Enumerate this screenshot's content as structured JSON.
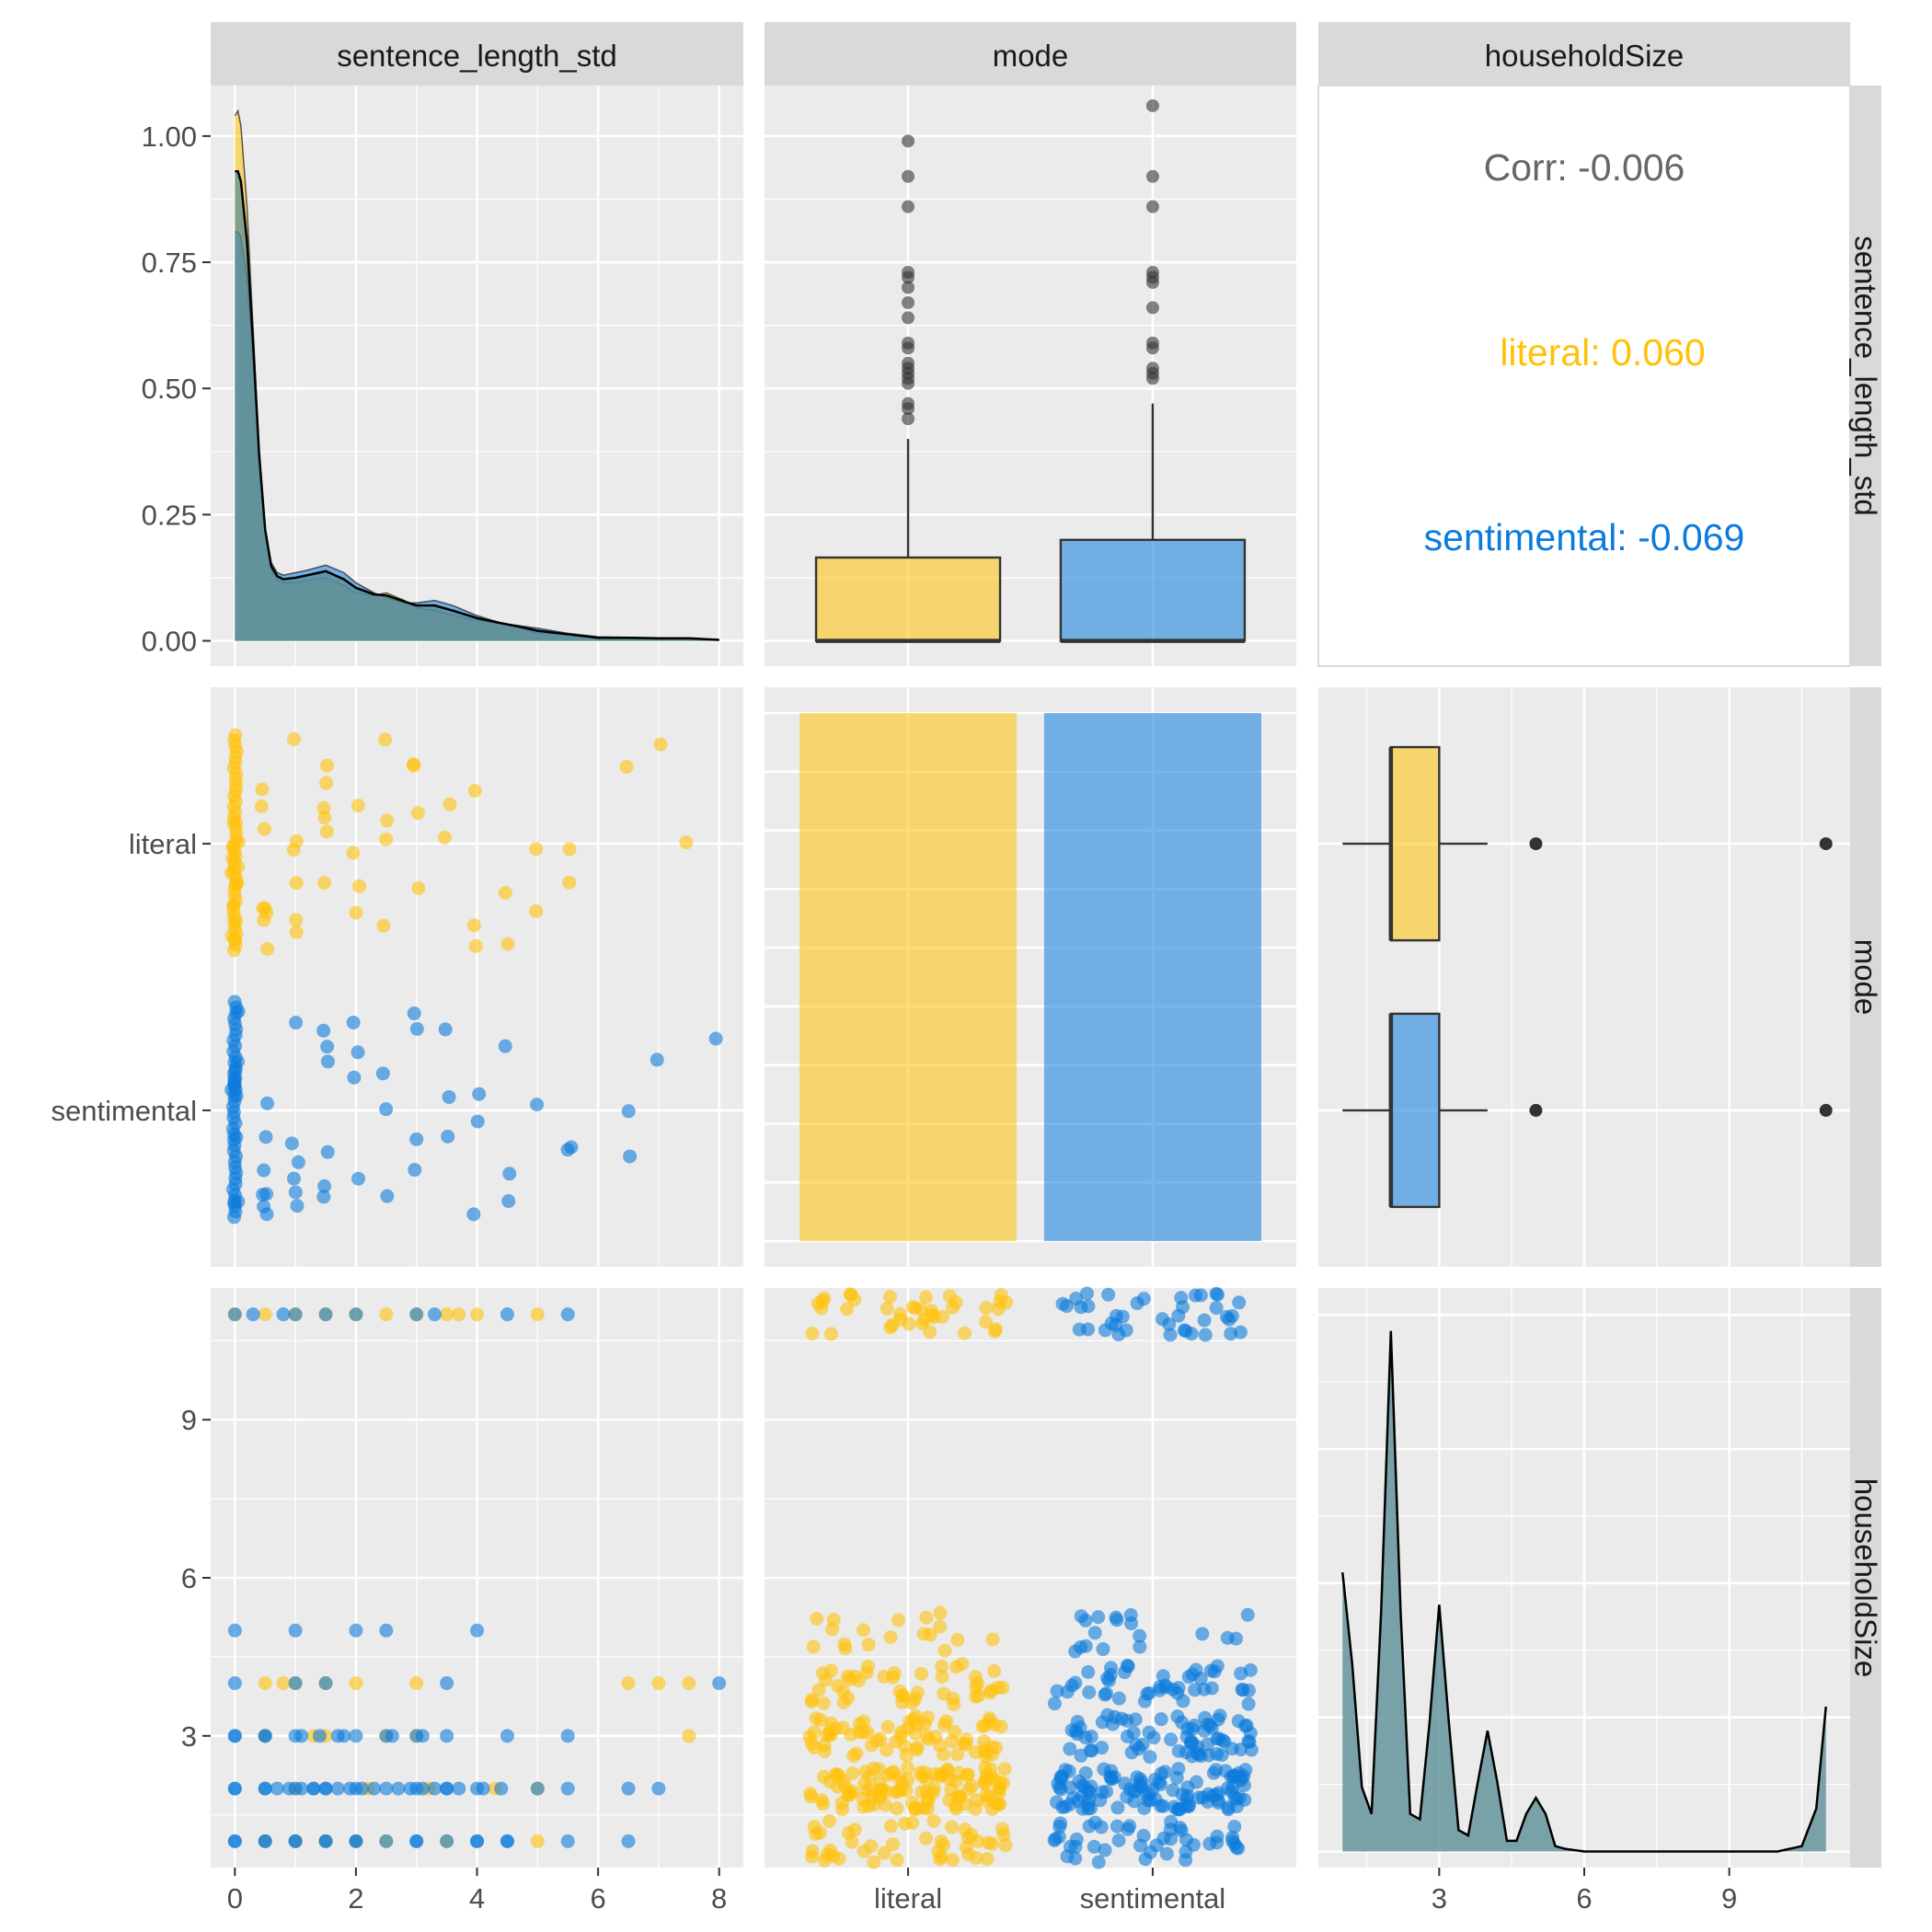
{
  "colors": {
    "literal": "#FFC20A",
    "sentimental": "#0C7BDC",
    "overlap": "#5C8E97",
    "panel_bg": "#EBEBEB",
    "strip_bg": "#D9D9D9",
    "grid_major": "#FFFFFF",
    "axis_text": "#4D4D4D",
    "corr_text": "#666666"
  },
  "variables": [
    "sentence_length_std",
    "mode",
    "householdSize"
  ],
  "correlation": {
    "overall": "Corr: -0.006",
    "literal": "literal: 0.060",
    "sentimental": "sentimental: -0.069"
  },
  "chart_data": [
    {
      "panel": "1-1",
      "type": "area",
      "variable": "sentence_length_std",
      "xlim": [
        -0.4,
        8.4
      ],
      "ylim": [
        -0.05,
        1.1
      ],
      "x_ticks": [
        "0",
        "2",
        "4",
        "6",
        "8"
      ],
      "y_ticks": [
        "0.00",
        "0.25",
        "0.50",
        "0.75",
        "1.00"
      ],
      "x": [
        0,
        0.05,
        0.1,
        0.2,
        0.3,
        0.4,
        0.5,
        0.6,
        0.7,
        0.8,
        1.0,
        1.2,
        1.5,
        1.8,
        2.0,
        2.3,
        2.5,
        2.8,
        3.0,
        3.3,
        3.6,
        4.0,
        4.4,
        4.7,
        5.0,
        5.5,
        6.0,
        6.5,
        7.0,
        7.5,
        8.0
      ],
      "series": [
        {
          "name": "literal",
          "values": [
            1.04,
            1.05,
            1.02,
            0.86,
            0.62,
            0.38,
            0.22,
            0.14,
            0.12,
            0.115,
            0.115,
            0.12,
            0.125,
            0.11,
            0.095,
            0.09,
            0.095,
            0.08,
            0.065,
            0.06,
            0.05,
            0.04,
            0.035,
            0.025,
            0.015,
            0.012,
            0.005,
            0.005,
            0.005,
            0.004,
            0.002
          ]
        },
        {
          "name": "sentimental",
          "values": [
            0.81,
            0.81,
            0.8,
            0.72,
            0.56,
            0.36,
            0.22,
            0.155,
            0.135,
            0.13,
            0.135,
            0.14,
            0.15,
            0.135,
            0.115,
            0.095,
            0.085,
            0.075,
            0.075,
            0.08,
            0.07,
            0.05,
            0.035,
            0.03,
            0.025,
            0.015,
            0.008,
            0.007,
            0.006,
            0.006,
            0.002
          ]
        },
        {
          "name": "overall",
          "values": [
            0.93,
            0.93,
            0.91,
            0.79,
            0.59,
            0.37,
            0.22,
            0.148,
            0.128,
            0.122,
            0.125,
            0.13,
            0.138,
            0.122,
            0.105,
            0.092,
            0.09,
            0.078,
            0.07,
            0.07,
            0.06,
            0.045,
            0.035,
            0.028,
            0.02,
            0.013,
            0.006,
            0.006,
            0.005,
            0.005,
            0.002
          ]
        }
      ]
    },
    {
      "panel": "1-2",
      "type": "boxplot",
      "categories": [
        "literal",
        "sentimental"
      ],
      "ylim": [
        -0.05,
        1.1
      ],
      "boxes": [
        {
          "name": "literal",
          "q1": 0.0,
          "median": 0.0,
          "q3": 0.165,
          "whisker_low": 0.0,
          "whisker_high": 0.4,
          "outliers": [
            0.99,
            0.92,
            0.86,
            0.73,
            0.72,
            0.7,
            0.67,
            0.64,
            0.59,
            0.58,
            0.55,
            0.54,
            0.53,
            0.52,
            0.51,
            0.47,
            0.46,
            0.44
          ]
        },
        {
          "name": "sentimental",
          "q1": 0.0,
          "median": 0.0,
          "q3": 0.2,
          "whisker_low": 0.0,
          "whisker_high": 0.47,
          "outliers": [
            1.06,
            0.92,
            0.86,
            0.73,
            0.72,
            0.71,
            0.66,
            0.59,
            0.58,
            0.54,
            0.53,
            0.52
          ]
        }
      ]
    },
    {
      "panel": "2-1",
      "type": "scatter",
      "note": "jittered by mode",
      "xlim": [
        -0.4,
        8.4
      ],
      "y_ticks": [
        "literal",
        "sentimental"
      ],
      "literal_x": [
        0,
        0,
        0,
        0,
        0,
        0,
        0,
        0,
        0,
        0,
        0,
        0,
        0.5,
        0.5,
        0.5,
        0.5,
        0.5,
        0.5,
        0.5,
        0.5,
        1.0,
        1.0,
        1.0,
        1.0,
        1.0,
        1.0,
        1.5,
        1.5,
        1.5,
        1.5,
        1.5,
        1.5,
        2.0,
        2.0,
        2.0,
        2.0,
        2.5,
        2.5,
        2.5,
        2.5,
        3.0,
        3.0,
        3.0,
        3.0,
        3.5,
        3.5,
        4.0,
        4.0,
        4.0,
        4.5,
        4.5,
        5.0,
        5.0,
        5.5,
        5.5,
        6.5,
        7.0,
        7.5
      ],
      "sentimental_x": [
        0,
        0,
        0,
        0,
        0,
        0,
        0,
        0,
        0,
        0,
        0,
        0,
        0.5,
        0.5,
        0.5,
        0.5,
        0.5,
        0.5,
        0.5,
        1.0,
        1.0,
        1.0,
        1.0,
        1.0,
        1.0,
        1.5,
        1.5,
        1.5,
        1.5,
        1.5,
        1.5,
        2.0,
        2.0,
        2.0,
        2.0,
        2.5,
        2.5,
        2.5,
        3.0,
        3.0,
        3.0,
        3.0,
        3.5,
        3.5,
        3.5,
        4.0,
        4.0,
        4.0,
        4.5,
        4.5,
        4.5,
        5.0,
        5.5,
        5.5,
        6.5,
        6.5,
        7.0,
        8.0
      ]
    },
    {
      "panel": "2-2",
      "type": "bar",
      "categories": [
        "literal",
        "sentimental"
      ],
      "values": [
        1,
        1
      ]
    },
    {
      "panel": "2-3",
      "type": "boxplot",
      "orientation": "horizontal",
      "xlim": [
        0.5,
        11.5
      ],
      "boxes": [
        {
          "name": "literal",
          "q1": 2,
          "median": 2,
          "q3": 3,
          "whisker_low": 1,
          "whisker_high": 4,
          "outliers": [
            5,
            11
          ]
        },
        {
          "name": "sentimental",
          "q1": 2,
          "median": 2,
          "q3": 3,
          "whisker_low": 1,
          "whisker_high": 4,
          "outliers": [
            5,
            11
          ]
        }
      ]
    },
    {
      "panel": "3-1",
      "type": "scatter",
      "xlim": [
        -0.4,
        8.4
      ],
      "ylim": [
        0.5,
        11.5
      ],
      "x_ticks": [
        "0",
        "2",
        "4",
        "6",
        "8"
      ],
      "y_ticks": [
        "3",
        "6",
        "9"
      ],
      "series": [
        {
          "name": "literal",
          "points": [
            [
              0,
              11
            ],
            [
              0.5,
              11
            ],
            [
              1,
              11
            ],
            [
              1.5,
              11
            ],
            [
              2,
              11
            ],
            [
              2.5,
              11
            ],
            [
              3,
              11
            ],
            [
              3.5,
              11
            ],
            [
              3.7,
              11
            ],
            [
              4,
              11
            ],
            [
              5,
              11
            ],
            [
              0.5,
              4
            ],
            [
              0.8,
              4
            ],
            [
              1,
              4
            ],
            [
              1.5,
              4
            ],
            [
              2,
              4
            ],
            [
              3,
              4
            ],
            [
              6.5,
              4
            ],
            [
              7,
              4
            ],
            [
              7.5,
              4
            ],
            [
              0.5,
              3
            ],
            [
              1.3,
              3
            ],
            [
              1.5,
              3
            ],
            [
              2.5,
              3
            ],
            [
              3,
              3
            ],
            [
              7.5,
              3
            ],
            [
              1,
              2
            ],
            [
              2.2,
              2
            ],
            [
              3.2,
              2
            ],
            [
              4.3,
              2
            ],
            [
              5,
              2
            ],
            [
              0.5,
              1
            ],
            [
              1,
              1
            ],
            [
              1.5,
              1
            ],
            [
              2,
              1
            ],
            [
              2.5,
              1
            ],
            [
              3.5,
              1
            ],
            [
              5,
              1
            ]
          ]
        },
        {
          "name": "sentimental",
          "points": [
            [
              0,
              11
            ],
            [
              0.3,
              11
            ],
            [
              0.8,
              11
            ],
            [
              1,
              11
            ],
            [
              1.5,
              11
            ],
            [
              2,
              11
            ],
            [
              3,
              11
            ],
            [
              3.3,
              11
            ],
            [
              4.5,
              11
            ],
            [
              5.5,
              11
            ],
            [
              0,
              5
            ],
            [
              1,
              5
            ],
            [
              2,
              5
            ],
            [
              2.5,
              5
            ],
            [
              4,
              5
            ],
            [
              0,
              4
            ],
            [
              1,
              4
            ],
            [
              1.5,
              4
            ],
            [
              3.5,
              4
            ],
            [
              8,
              4
            ],
            [
              0,
              3
            ],
            [
              0.5,
              3
            ],
            [
              1,
              3
            ],
            [
              1.7,
              3
            ],
            [
              2,
              3
            ],
            [
              2.5,
              3
            ],
            [
              3,
              3
            ],
            [
              3.5,
              3
            ],
            [
              4.5,
              3
            ],
            [
              5.5,
              3
            ],
            [
              0,
              2
            ],
            [
              0.5,
              2
            ],
            [
              1,
              2
            ],
            [
              1.3,
              2
            ],
            [
              1.5,
              2
            ],
            [
              2,
              2
            ],
            [
              2.5,
              2
            ],
            [
              3,
              2
            ],
            [
              3.5,
              2
            ],
            [
              4,
              2
            ],
            [
              5,
              2
            ],
            [
              5.5,
              2
            ],
            [
              6.5,
              2
            ],
            [
              7,
              2
            ],
            [
              0,
              1
            ],
            [
              0.5,
              1
            ],
            [
              1,
              1
            ],
            [
              1.5,
              1
            ],
            [
              2,
              1
            ],
            [
              3,
              1
            ],
            [
              4,
              1
            ],
            [
              4.5,
              1
            ],
            [
              5.5,
              1
            ],
            [
              6.5,
              1
            ]
          ]
        }
      ]
    },
    {
      "panel": "3-2",
      "type": "scatter",
      "note": "householdSize jittered by mode",
      "categories": [
        "literal",
        "sentimental"
      ],
      "ylim": [
        0.5,
        11.5
      ],
      "levels": [
        1,
        2,
        3,
        4,
        5,
        11
      ]
    },
    {
      "panel": "3-3",
      "type": "area",
      "variable": "householdSize",
      "xlim": [
        0.5,
        11.5
      ],
      "x_ticks": [
        "3",
        "6",
        "9"
      ],
      "x": [
        1,
        1.2,
        1.4,
        1.6,
        1.8,
        2.0,
        2.2,
        2.4,
        2.6,
        2.8,
        3.0,
        3.2,
        3.4,
        3.6,
        3.8,
        4.0,
        4.2,
        4.4,
        4.6,
        4.8,
        5.0,
        5.2,
        5.4,
        5.6,
        6.0,
        7.0,
        8.0,
        9.0,
        10.0,
        10.5,
        10.8,
        11.0
      ],
      "values": [
        0.52,
        0.35,
        0.12,
        0.07,
        0.45,
        0.97,
        0.45,
        0.07,
        0.06,
        0.24,
        0.46,
        0.24,
        0.04,
        0.03,
        0.13,
        0.225,
        0.13,
        0.02,
        0.02,
        0.07,
        0.1,
        0.07,
        0.01,
        0.005,
        0.0,
        0.0,
        0.0,
        0.0,
        0.0,
        0.01,
        0.08,
        0.27
      ]
    }
  ]
}
